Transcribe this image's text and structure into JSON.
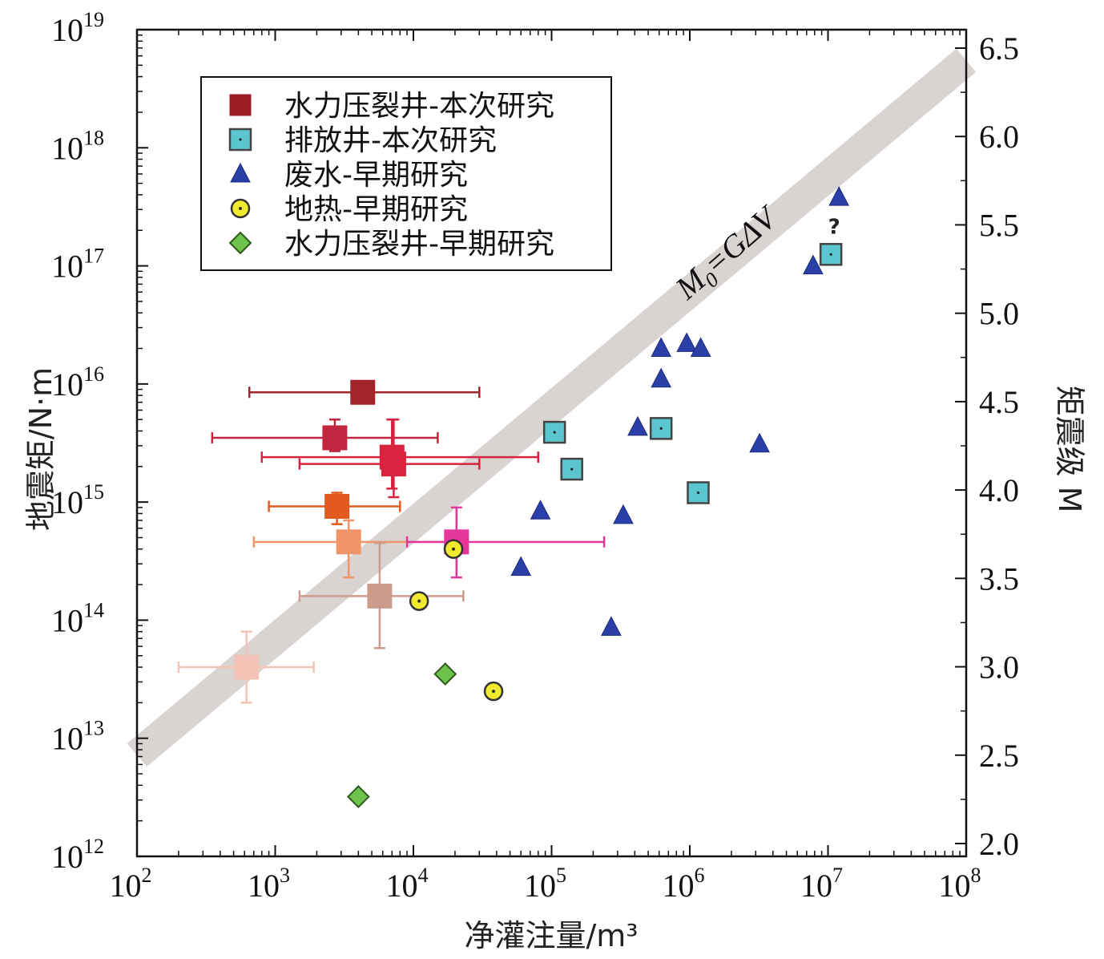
{
  "chart_data": {
    "type": "scatter",
    "x_label": "净灌注量/m³",
    "y_label": "地震矩/N·m",
    "y2_label": "矩震级 M",
    "x_scale": "log",
    "y_scale": "log",
    "x_range": [
      100,
      100000000
    ],
    "y_range": [
      1000000000000.0,
      1e+19
    ],
    "x_ticks": [
      {
        "value": 100,
        "base": "10",
        "exp": "2"
      },
      {
        "value": 1000,
        "base": "10",
        "exp": "3"
      },
      {
        "value": 10000,
        "base": "10",
        "exp": "4"
      },
      {
        "value": 100000,
        "base": "10",
        "exp": "5"
      },
      {
        "value": 1000000,
        "base": "10",
        "exp": "6"
      },
      {
        "value": 10000000,
        "base": "10",
        "exp": "7"
      },
      {
        "value": 100000000,
        "base": "10",
        "exp": "8"
      }
    ],
    "y_ticks": [
      {
        "value": 1000000000000.0,
        "base": "10",
        "exp": "12"
      },
      {
        "value": 10000000000000.0,
        "base": "10",
        "exp": "13"
      },
      {
        "value": 100000000000000.0,
        "base": "10",
        "exp": "14"
      },
      {
        "value": 1000000000000000.0,
        "base": "10",
        "exp": "15"
      },
      {
        "value": 1e+16,
        "base": "10",
        "exp": "16"
      },
      {
        "value": 1e+17,
        "base": "10",
        "exp": "17"
      },
      {
        "value": 1e+18,
        "base": "10",
        "exp": "18"
      },
      {
        "value": 1e+19,
        "base": "10",
        "exp": "19"
      }
    ],
    "y2_range": [
      2.0,
      6.5
    ],
    "y2_ticks": [
      "2.0",
      "2.5",
      "3.0",
      "3.5",
      "4.0",
      "4.5",
      "5.0",
      "5.5",
      "6.0",
      "6.5"
    ],
    "reference_line": {
      "label_main": "M",
      "label_sub": "0",
      "label_rest": "=GΔV",
      "x": [
        100,
        100000000
      ],
      "y": [
        7200000000000.0,
        5.5e+18
      ],
      "color": "#d9d4d2"
    },
    "legend": {
      "position": "top-left",
      "entries": [
        {
          "label": "水力压裂井-本次研究",
          "marker": "square",
          "color": "#9c1c22"
        },
        {
          "label": "排放井-本次研究",
          "marker": "square-dot",
          "color": "#5cc6d0"
        },
        {
          "label": "废水-早期研究",
          "marker": "triangle",
          "color": "#2b3fa8"
        },
        {
          "label": "地热-早期研究",
          "marker": "circle-dot",
          "color": "#f2ea2e"
        },
        {
          "label": "水力压裂井-早期研究",
          "marker": "diamond",
          "color": "#6cc24a"
        }
      ]
    },
    "series": [
      {
        "name": "水力压裂井-本次研究",
        "marker": "square",
        "points": [
          {
            "x": 4300,
            "y": 8500000000000000.0,
            "xerr": [
              650,
              30000
            ],
            "color": "#a3252b"
          },
          {
            "x": 2700,
            "y": 3500000000000000.0,
            "xerr": [
              350,
              15000
            ],
            "yerr": [
              2700000000000000.0,
              5000000000000000.0
            ],
            "color": "#c0263d"
          },
          {
            "x": 7000,
            "y": 2400000000000000.0,
            "xerr": [
              800,
              80000
            ],
            "yerr": [
              1300000000000000.0,
              5000000000000000.0
            ],
            "color": "#d8233f"
          },
          {
            "x": 7200,
            "y": 2100000000000000.0,
            "xerr": [
              1500,
              30000
            ],
            "yerr": [
              1100000000000000.0,
              5000000000000000.0
            ],
            "color": "#d8233f"
          },
          {
            "x": 2800,
            "y": 920000000000000.0,
            "xerr": [
              900,
              8000
            ],
            "yerr": [
              650000000000000.0,
              1200000000000000.0
            ],
            "color": "#e35a1e"
          },
          {
            "x": 3400,
            "y": 460000000000000.0,
            "xerr": [
              700,
              18000
            ],
            "yerr": [
              230000000000000.0,
              700000000000000.0
            ],
            "color": "#f0956a"
          },
          {
            "x": 20500,
            "y": 460000000000000.0,
            "xerr": [
              9000,
              240000
            ],
            "yerr": [
              230000000000000.0,
              900000000000000.0
            ],
            "color": "#e6369a"
          },
          {
            "x": 5700,
            "y": 160000000000000.0,
            "xerr": [
              1500,
              23000
            ],
            "yerr": [
              58000000000000.0,
              450000000000000.0
            ],
            "color": "#cc9b8c"
          },
          {
            "x": 620,
            "y": 40000000000000.0,
            "xerr": [
              200,
              1900
            ],
            "yerr": [
              20000000000000.0,
              80000000000000.0
            ],
            "color": "#f3c2b4"
          }
        ]
      },
      {
        "name": "排放井-本次研究",
        "marker": "square-dot",
        "color": "#5cc6d0",
        "points": [
          {
            "x": 105000,
            "y": 3900000000000000.0
          },
          {
            "x": 140000,
            "y": 1900000000000000.0
          },
          {
            "x": 620000,
            "y": 4200000000000000.0
          },
          {
            "x": 1150000,
            "y": 1200000000000000.0
          },
          {
            "x": 10500000,
            "y": 1.25e+17,
            "note": "?"
          }
        ]
      },
      {
        "name": "废水-早期研究",
        "marker": "triangle",
        "color": "#2b3fa8",
        "points": [
          {
            "x": 12000000,
            "y": 3.8e+17
          },
          {
            "x": 7800000,
            "y": 1e+17
          },
          {
            "x": 620000,
            "y": 2e+16
          },
          {
            "x": 950000,
            "y": 2.2e+16
          },
          {
            "x": 1200000,
            "y": 2e+16
          },
          {
            "x": 620000,
            "y": 1.1e+16
          },
          {
            "x": 420000,
            "y": 4300000000000000.0
          },
          {
            "x": 3200000,
            "y": 3100000000000000.0
          },
          {
            "x": 83000,
            "y": 840000000000000.0
          },
          {
            "x": 330000,
            "y": 770000000000000.0
          },
          {
            "x": 60000,
            "y": 280000000000000.0
          },
          {
            "x": 270000,
            "y": 87000000000000.0
          }
        ]
      },
      {
        "name": "地热-早期研究",
        "marker": "circle-dot",
        "color": "#f2ea2e",
        "points": [
          {
            "x": 19500,
            "y": 400000000000000.0
          },
          {
            "x": 11000,
            "y": 145000000000000.0
          },
          {
            "x": 38000,
            "y": 25000000000000.0
          }
        ]
      },
      {
        "name": "水力压裂井-早期研究",
        "marker": "diamond",
        "color": "#6cc24a",
        "points": [
          {
            "x": 17000,
            "y": 35000000000000.0
          },
          {
            "x": 4000,
            "y": 3200000000000.0
          }
        ]
      }
    ]
  }
}
